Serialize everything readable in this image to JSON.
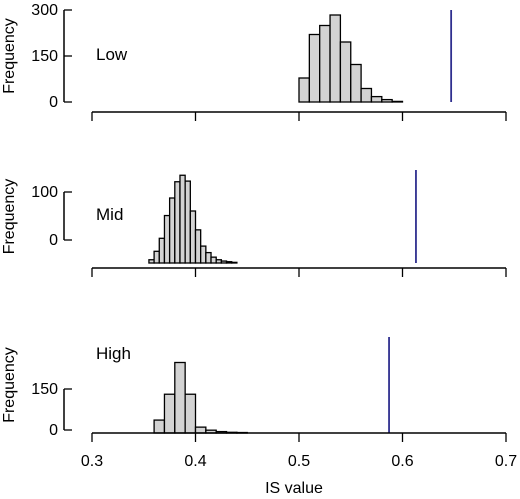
{
  "chart_data": [
    {
      "type": "bar",
      "panel_label": "Low",
      "ylabel": "Frequency",
      "y_ticks": [
        0,
        150,
        300
      ],
      "ylim": [
        0,
        300
      ],
      "bins": [
        {
          "x0": 0.5,
          "x1": 0.51,
          "count": 80
        },
        {
          "x0": 0.51,
          "x1": 0.52,
          "count": 225
        },
        {
          "x0": 0.52,
          "x1": 0.53,
          "count": 255
        },
        {
          "x0": 0.53,
          "x1": 0.54,
          "count": 290
        },
        {
          "x0": 0.54,
          "x1": 0.55,
          "count": 200
        },
        {
          "x0": 0.55,
          "x1": 0.56,
          "count": 125
        },
        {
          "x0": 0.56,
          "x1": 0.57,
          "count": 45
        },
        {
          "x0": 0.57,
          "x1": 0.58,
          "count": 18
        },
        {
          "x0": 0.58,
          "x1": 0.59,
          "count": 8
        },
        {
          "x0": 0.59,
          "x1": 0.6,
          "count": 2
        }
      ],
      "reference_line": 0.647,
      "reference_color": "#2f2f8f"
    },
    {
      "type": "bar",
      "panel_label": "Mid",
      "ylabel": "Frequency",
      "y_ticks": [
        0,
        100
      ],
      "ylim": [
        0,
        140
      ],
      "bins": [
        {
          "x0": 0.355,
          "x1": 0.36,
          "count": 5
        },
        {
          "x0": 0.36,
          "x1": 0.365,
          "count": 18
        },
        {
          "x0": 0.365,
          "x1": 0.37,
          "count": 38
        },
        {
          "x0": 0.37,
          "x1": 0.375,
          "count": 73
        },
        {
          "x0": 0.375,
          "x1": 0.38,
          "count": 100
        },
        {
          "x0": 0.38,
          "x1": 0.385,
          "count": 125
        },
        {
          "x0": 0.385,
          "x1": 0.39,
          "count": 135
        },
        {
          "x0": 0.39,
          "x1": 0.395,
          "count": 126
        },
        {
          "x0": 0.395,
          "x1": 0.4,
          "count": 80
        },
        {
          "x0": 0.4,
          "x1": 0.405,
          "count": 51
        },
        {
          "x0": 0.405,
          "x1": 0.41,
          "count": 26
        },
        {
          "x0": 0.41,
          "x1": 0.415,
          "count": 16
        },
        {
          "x0": 0.415,
          "x1": 0.42,
          "count": 9
        },
        {
          "x0": 0.42,
          "x1": 0.425,
          "count": 5
        },
        {
          "x0": 0.425,
          "x1": 0.43,
          "count": 3
        },
        {
          "x0": 0.43,
          "x1": 0.435,
          "count": 2
        },
        {
          "x0": 0.435,
          "x1": 0.44,
          "count": 1
        }
      ],
      "reference_line": 0.613,
      "reference_color": "#2f2f8f"
    },
    {
      "type": "bar",
      "panel_label": "High",
      "ylabel": "Frequency",
      "y_ticks": [
        0,
        150
      ],
      "ylim": [
        0,
        400
      ],
      "bins": [
        {
          "x0": 0.36,
          "x1": 0.37,
          "count": 55
        },
        {
          "x0": 0.37,
          "x1": 0.38,
          "count": 165
        },
        {
          "x0": 0.38,
          "x1": 0.39,
          "count": 300
        },
        {
          "x0": 0.39,
          "x1": 0.4,
          "count": 165
        },
        {
          "x0": 0.4,
          "x1": 0.41,
          "count": 25
        },
        {
          "x0": 0.41,
          "x1": 0.42,
          "count": 12
        },
        {
          "x0": 0.42,
          "x1": 0.43,
          "count": 6
        },
        {
          "x0": 0.43,
          "x1": 0.44,
          "count": 3
        },
        {
          "x0": 0.44,
          "x1": 0.45,
          "count": 2
        }
      ],
      "reference_line": 0.587,
      "reference_color": "#2f2f8f"
    }
  ],
  "x_axis": {
    "label": "IS value",
    "xlim": [
      0.3,
      0.7
    ],
    "ticks": [
      0.3,
      0.4,
      0.5,
      0.6,
      0.7
    ]
  }
}
